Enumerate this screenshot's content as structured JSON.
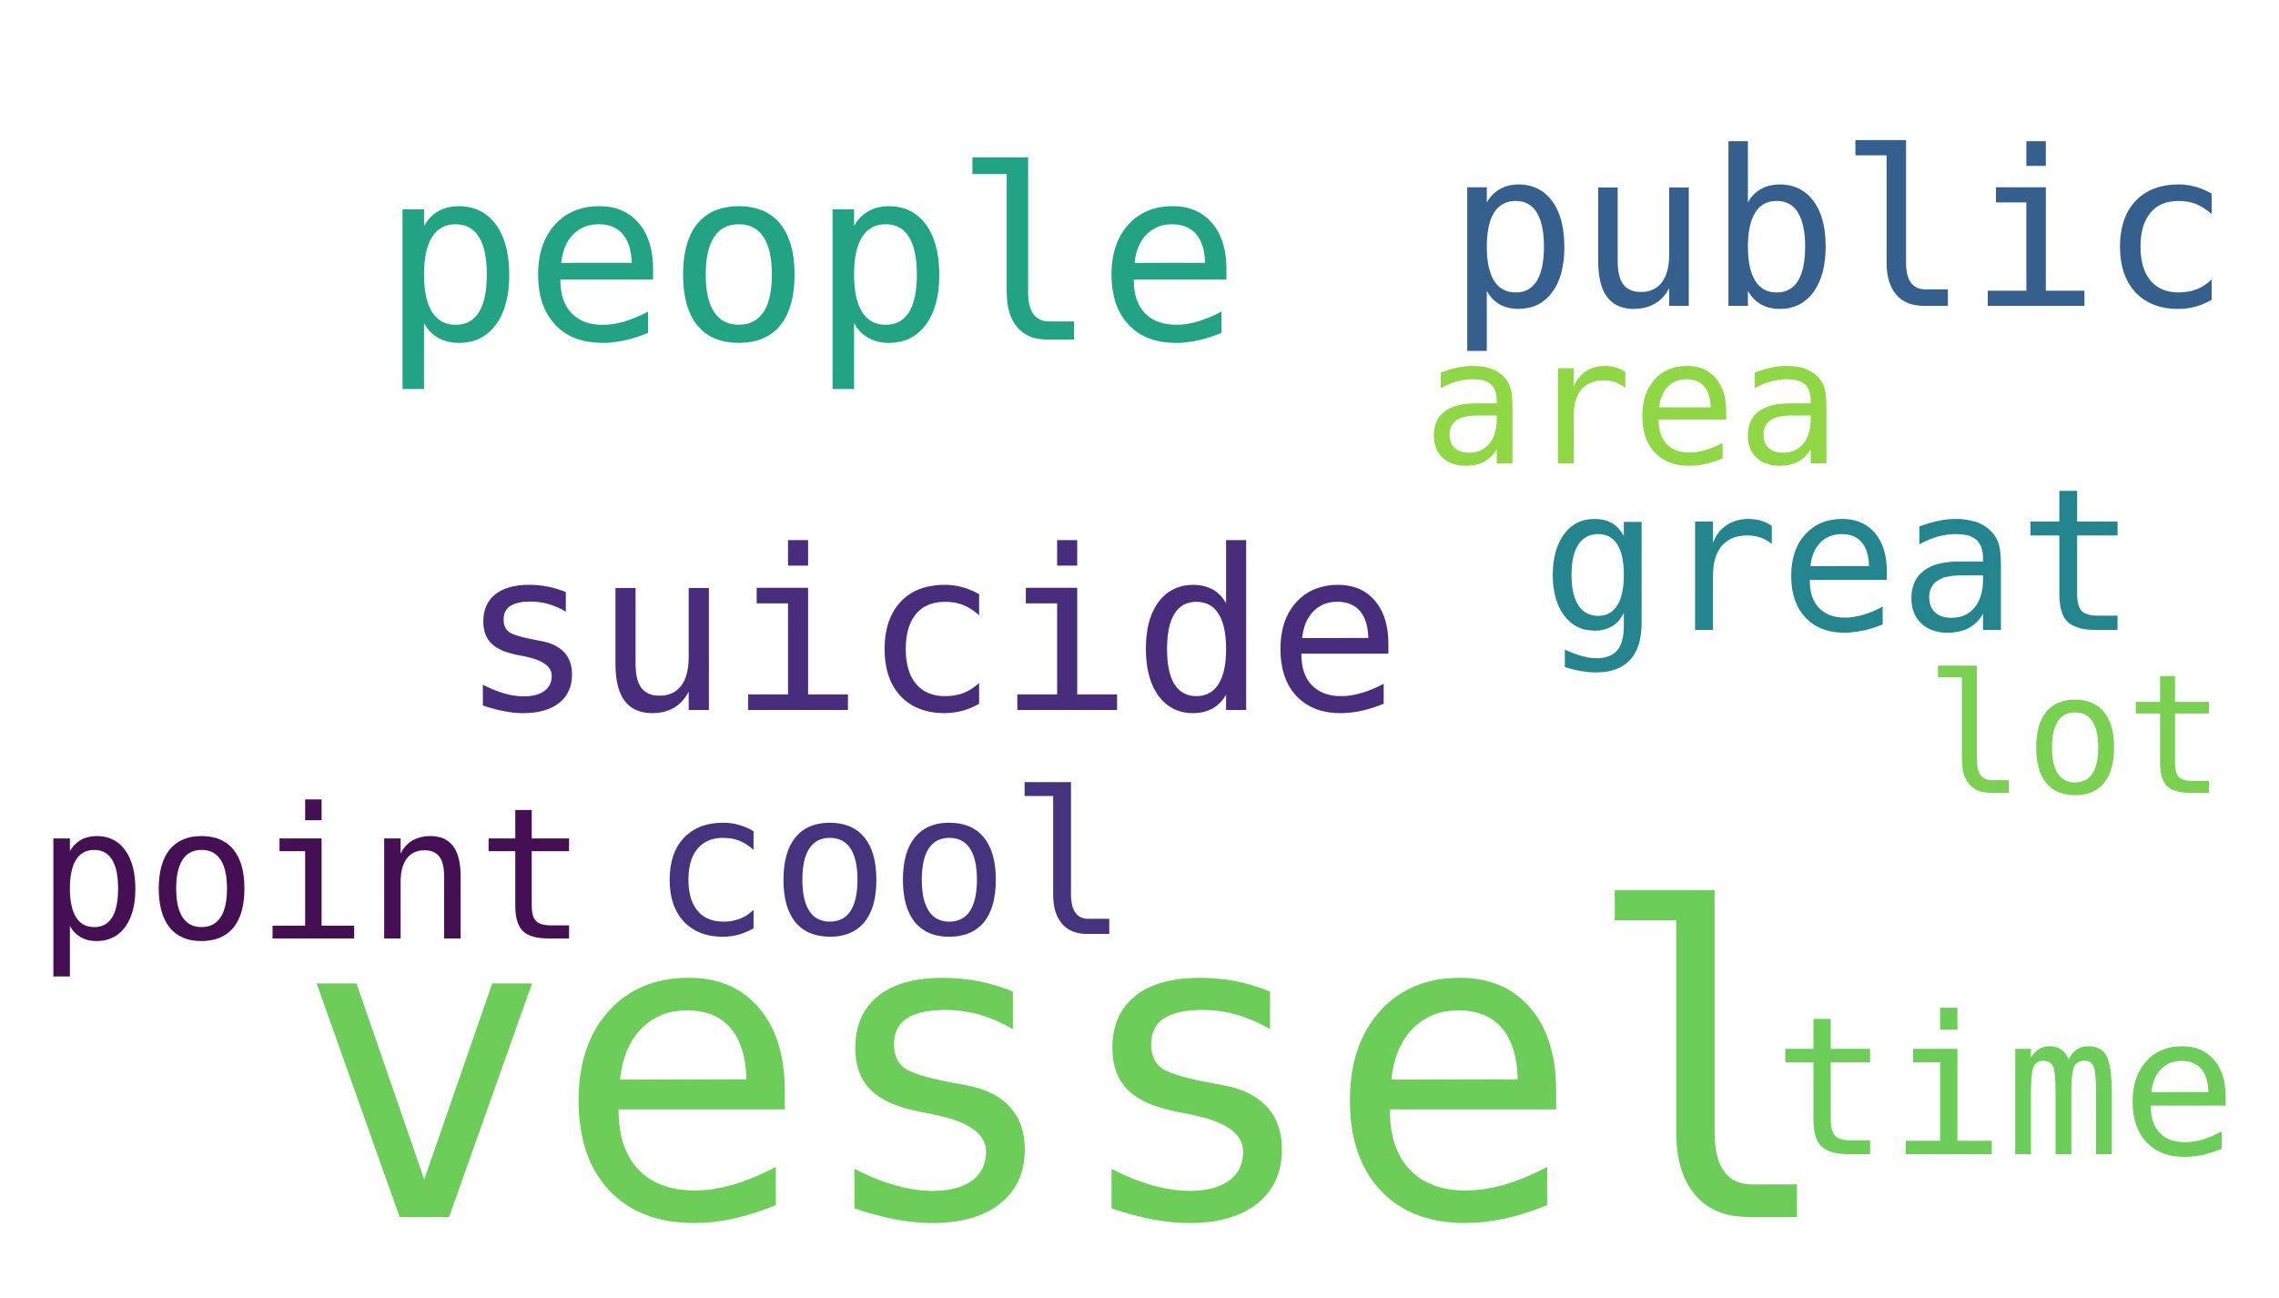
{
  "words": [
    {
      "text": "vessel",
      "color": "#6DCD59"
    },
    {
      "text": "people",
      "color": "#22A384"
    },
    {
      "text": "public",
      "color": "#355F8D"
    },
    {
      "text": "suicide",
      "color": "#472D7B"
    },
    {
      "text": "great",
      "color": "#25858E"
    },
    {
      "text": "area",
      "color": "#8FD744"
    },
    {
      "text": "lot",
      "color": "#7AD151"
    },
    {
      "text": "time",
      "color": "#6DCD59"
    },
    {
      "text": "point",
      "color": "#440F53"
    },
    {
      "text": "cool",
      "color": "#46337E"
    }
  ]
}
